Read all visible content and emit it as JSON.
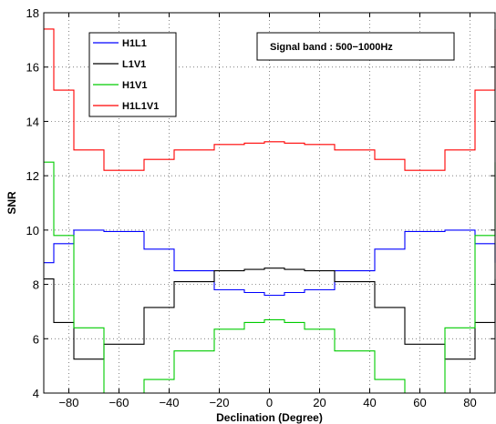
{
  "chart_data": {
    "type": "line",
    "title": "",
    "xlabel": "Declination (Degree)",
    "ylabel": "SNR",
    "xlim": [
      -90,
      90
    ],
    "ylim": [
      4,
      18
    ],
    "xticks": [
      -80,
      -60,
      -40,
      -20,
      0,
      20,
      40,
      60,
      80
    ],
    "yticks": [
      4,
      6,
      8,
      10,
      12,
      14,
      16,
      18
    ],
    "grid": true,
    "legend_position": "top-left",
    "annotation": "Signal band : 500−1000Hz",
    "x": [
      -90,
      -86,
      -82,
      -78,
      -74,
      -70,
      -66,
      -62,
      -58,
      -54,
      -50,
      -46,
      -42,
      -38,
      -34,
      -30,
      -26,
      -22,
      -18,
      -14,
      -10,
      -6,
      -2,
      2,
      6,
      10,
      14,
      18,
      22,
      26,
      30,
      34,
      38,
      42,
      46,
      50,
      54,
      58,
      62,
      66,
      70,
      74,
      78,
      82,
      86,
      90
    ],
    "series": [
      {
        "name": "H1L1",
        "color": "#0000ff",
        "values": [
          8.8,
          9.5,
          9.5,
          10.0,
          10.0,
          10.0,
          9.95,
          9.95,
          9.95,
          9.95,
          9.3,
          9.3,
          9.3,
          8.5,
          8.5,
          8.5,
          8.5,
          7.8,
          7.8,
          7.8,
          7.7,
          7.7,
          7.6,
          7.6,
          7.7,
          7.7,
          7.8,
          7.8,
          7.8,
          8.5,
          8.5,
          8.5,
          8.5,
          9.3,
          9.3,
          9.3,
          9.95,
          9.95,
          9.95,
          9.95,
          10.0,
          10.0,
          10.0,
          9.5,
          9.5,
          8.8
        ]
      },
      {
        "name": "L1V1",
        "color": "#000000",
        "values": [
          8.2,
          6.6,
          6.6,
          5.25,
          5.25,
          5.25,
          5.8,
          5.8,
          5.8,
          5.8,
          7.15,
          7.15,
          7.15,
          8.1,
          8.1,
          8.1,
          8.1,
          8.5,
          8.5,
          8.5,
          8.55,
          8.55,
          8.6,
          8.6,
          8.55,
          8.55,
          8.5,
          8.5,
          8.5,
          8.1,
          8.1,
          8.1,
          8.1,
          7.15,
          7.15,
          7.15,
          5.8,
          5.8,
          5.8,
          5.8,
          5.25,
          5.25,
          5.25,
          6.6,
          6.6,
          8.2
        ]
      },
      {
        "name": "H1V1",
        "color": "#00cc00",
        "values": [
          12.5,
          9.8,
          9.8,
          6.4,
          6.4,
          6.4,
          4.0,
          4.0,
          4.0,
          4.0,
          4.5,
          4.5,
          4.5,
          5.55,
          5.55,
          5.55,
          5.55,
          6.35,
          6.35,
          6.35,
          6.6,
          6.6,
          6.7,
          6.7,
          6.6,
          6.6,
          6.35,
          6.35,
          6.35,
          5.55,
          5.55,
          5.55,
          5.55,
          4.5,
          4.5,
          4.5,
          4.0,
          4.0,
          4.0,
          4.0,
          6.4,
          6.4,
          6.4,
          9.8,
          9.8,
          12.5
        ]
      },
      {
        "name": "H1L1V1",
        "color": "#ff0000",
        "values": [
          17.4,
          15.15,
          15.15,
          12.95,
          12.95,
          12.95,
          12.2,
          12.2,
          12.2,
          12.2,
          12.6,
          12.6,
          12.6,
          12.95,
          12.95,
          12.95,
          12.95,
          13.15,
          13.15,
          13.15,
          13.2,
          13.2,
          13.25,
          13.25,
          13.2,
          13.2,
          13.15,
          13.15,
          13.15,
          12.95,
          12.95,
          12.95,
          12.95,
          12.6,
          12.6,
          12.6,
          12.2,
          12.2,
          12.2,
          12.2,
          12.95,
          12.95,
          12.95,
          15.15,
          15.15,
          17.4
        ]
      }
    ]
  }
}
